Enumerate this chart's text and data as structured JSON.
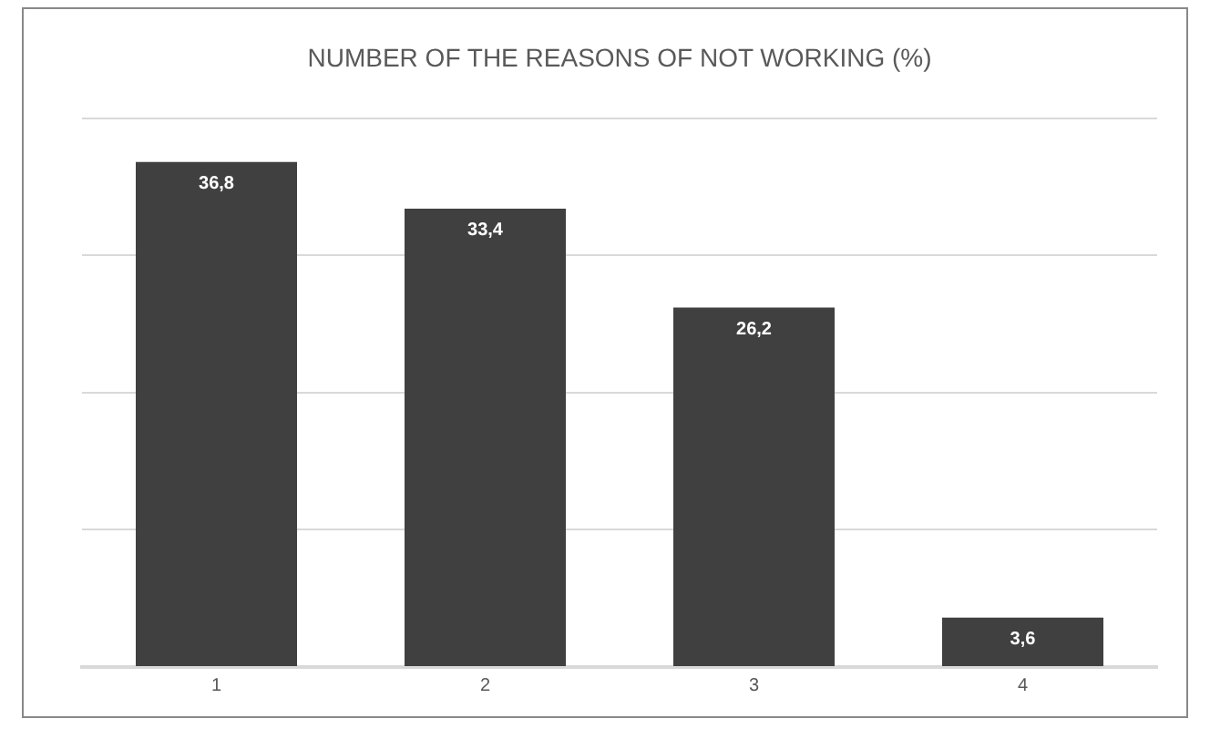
{
  "chart_data": {
    "type": "bar",
    "title": "NUMBER OF THE REASONS OF NOT WORKING (%)",
    "categories": [
      "1",
      "2",
      "3",
      "4"
    ],
    "values": [
      36.8,
      33.4,
      26.2,
      3.6
    ],
    "value_labels": [
      "36,8",
      "33,4",
      "26,2",
      "3,6"
    ],
    "color": "#404040",
    "ylim": [
      0,
      40
    ],
    "yticks": [
      {
        "value": 0,
        "label": null
      },
      {
        "value": 10,
        "label": null
      },
      {
        "value": 20,
        "label": null
      },
      {
        "value": 30,
        "label": null
      },
      {
        "value": 40,
        "label": null
      }
    ],
    "tick_labels": "x",
    "grid": "y",
    "legend": false
  }
}
